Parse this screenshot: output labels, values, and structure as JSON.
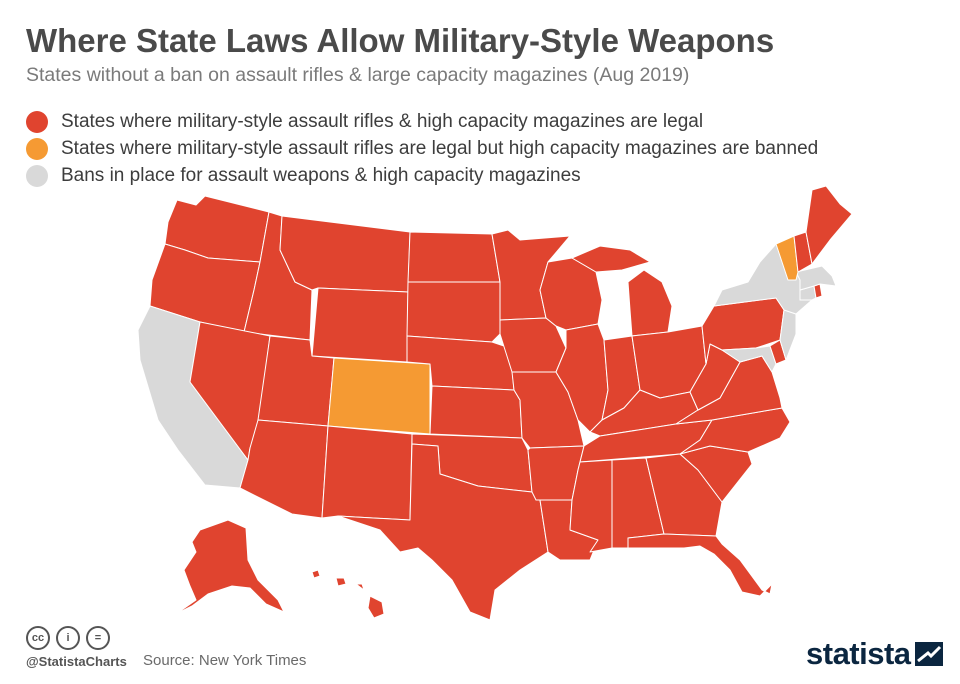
{
  "header": {
    "title": "Where State Laws Allow Military-Style Weapons",
    "subtitle": "States without a ban on assault rifles & large capacity magazines (Aug 2019)"
  },
  "legend": [
    {
      "label": "States where military-style assault rifles & high capacity magazines are legal",
      "color": "#e0442f"
    },
    {
      "label": "States where military-style assault rifles are legal but high capacity magazines are banned",
      "color": "#f59a33"
    },
    {
      "label": "Bans in place for assault weapons & high capacity magazines",
      "color": "#d9d9d9"
    }
  ],
  "map": {
    "states_legal": [
      "WA",
      "OR",
      "ID",
      "MT",
      "WY",
      "NV",
      "UT",
      "AZ",
      "NM",
      "TX",
      "OK",
      "KS",
      "NE",
      "SD",
      "ND",
      "MN",
      "IA",
      "MO",
      "AR",
      "LA",
      "WI",
      "IL",
      "MI",
      "IN",
      "OH",
      "KY",
      "TN",
      "MS",
      "AL",
      "GA",
      "FL",
      "SC",
      "NC",
      "VA",
      "WV",
      "PA",
      "ME",
      "NH",
      "DE",
      "AK",
      "HI"
    ],
    "states_magazine_ban": [
      "CO",
      "VT"
    ],
    "states_full_ban": [
      "CA",
      "NY",
      "NJ",
      "MA",
      "CT",
      "MD"
    ]
  },
  "footer": {
    "icons": [
      "creative-commons-icon",
      "attribution-icon",
      "no-derivatives-icon"
    ],
    "icon_labels": [
      "cc",
      "i",
      "="
    ],
    "handle": "@StatistaCharts",
    "source": "Source: New York Times",
    "brand": "statista"
  }
}
